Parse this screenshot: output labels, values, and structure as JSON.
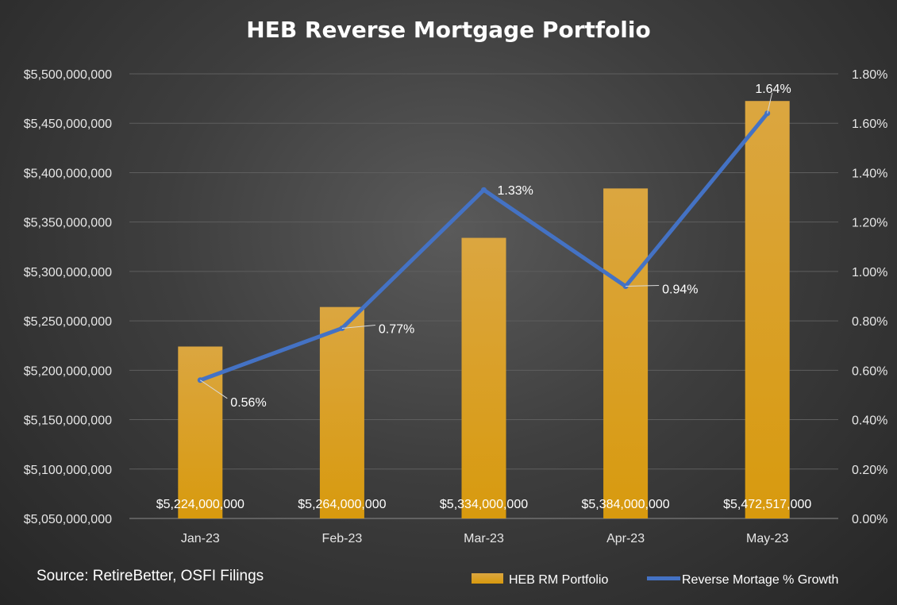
{
  "chart_data": {
    "type": "bar+line",
    "title": "HEB Reverse Mortgage Portfolio",
    "categories": [
      "Jan-23",
      "Feb-23",
      "Mar-23",
      "Apr-23",
      "May-23"
    ],
    "series": [
      {
        "name": "HEB RM Portfolio",
        "type": "bar",
        "axis": "left",
        "values": [
          5224000000,
          5264000000,
          5334000000,
          5384000000,
          5472517000
        ],
        "labels": [
          "$5,224,000,000",
          "$5,264,000,000",
          "$5,334,000,000",
          "$5,384,000,000",
          "$5,472,517,000"
        ],
        "color": "#e8a418"
      },
      {
        "name": "Reverse Mortage % Growth",
        "type": "line",
        "axis": "right",
        "values": [
          0.56,
          0.77,
          1.33,
          0.94,
          1.64
        ],
        "labels": [
          "0.56%",
          "0.77%",
          "1.33%",
          "0.94%",
          "1.64%"
        ],
        "color": "#4472c4"
      }
    ],
    "y_left": {
      "ylim": [
        5050000000,
        5500000000
      ],
      "ticks": [
        "$5,050,000,000",
        "$5,100,000,000",
        "$5,150,000,000",
        "$5,200,000,000",
        "$5,250,000,000",
        "$5,300,000,000",
        "$5,350,000,000",
        "$5,400,000,000",
        "$5,450,000,000",
        "$5,500,000,000"
      ]
    },
    "y_right": {
      "ylim": [
        0,
        1.8
      ],
      "ticks": [
        "0.00%",
        "0.20%",
        "0.40%",
        "0.60%",
        "0.80%",
        "1.00%",
        "1.20%",
        "1.40%",
        "1.60%",
        "1.80%"
      ]
    },
    "grid": true,
    "legend_position": "bottom-right",
    "source": "Source: RetireBetter, OSFI Filings"
  }
}
